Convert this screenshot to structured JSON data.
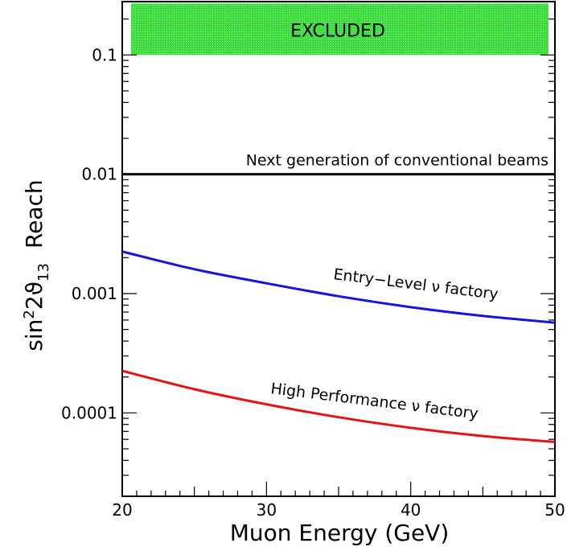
{
  "chart_data": {
    "type": "line",
    "xlabel": "Muon Energy    (GeV)",
    "ylabel": "Reach",
    "ylabel_prefix": "sin",
    "ylabel_sup": "2",
    "ylabel_mid": "2ϑ",
    "ylabel_sub": "13",
    "xlim": [
      20,
      50
    ],
    "ylim": [
      2e-05,
      0.28
    ],
    "yscale": "log",
    "grid": false,
    "x_ticks": [
      {
        "value": 20,
        "label": "20"
      },
      {
        "value": 30,
        "label": "30"
      },
      {
        "value": 40,
        "label": "40"
      },
      {
        "value": 50,
        "label": "50"
      }
    ],
    "y_ticks": [
      {
        "value": 0.1,
        "label": "0.1"
      },
      {
        "value": 0.01,
        "label": "0.01"
      },
      {
        "value": 0.001,
        "label": "0.001"
      },
      {
        "value": 0.0001,
        "label": "0.0001"
      }
    ],
    "excluded_region": {
      "label": "EXCLUDED",
      "y_from": 0.1,
      "y_to": 0.27,
      "color": "#3ddc3d"
    },
    "series": [
      {
        "label": "Next generation of conventional beams",
        "color": "#000000",
        "x": [
          20,
          50
        ],
        "y": [
          0.01,
          0.01
        ]
      },
      {
        "label": "Entry−Level ν factory",
        "color": "#1515e0",
        "x": [
          20,
          25,
          30,
          35,
          40,
          45,
          50
        ],
        "y": [
          0.00225,
          0.0016,
          0.00122,
          0.00095,
          0.00077,
          0.00065,
          0.00057
        ]
      },
      {
        "label": "High Performance ν factory",
        "color": "#e51414",
        "x": [
          20,
          25,
          30,
          35,
          40,
          45,
          50
        ],
        "y": [
          0.000225,
          0.000158,
          0.000118,
          9.2e-05,
          7.5e-05,
          6.4e-05,
          5.7e-05
        ]
      }
    ]
  }
}
